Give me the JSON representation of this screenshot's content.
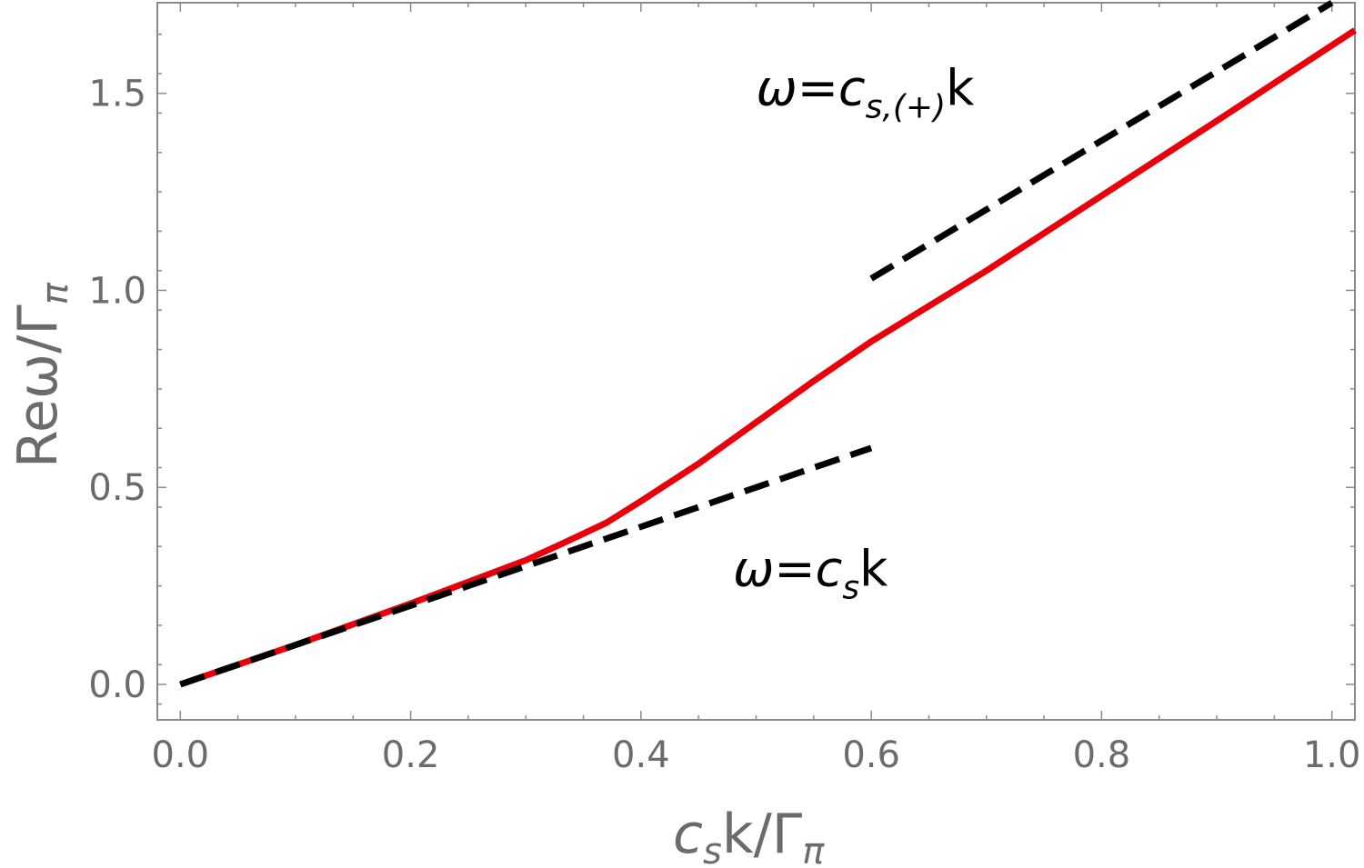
{
  "chart_data": {
    "type": "line",
    "xlim": [
      -0.02,
      1.02
    ],
    "ylim": [
      -0.09,
      1.73
    ],
    "x_ticks": [
      {
        "value": 0.0,
        "label": "0.0"
      },
      {
        "value": 0.2,
        "label": "0.2"
      },
      {
        "value": 0.4,
        "label": "0.4"
      },
      {
        "value": 0.6,
        "label": "0.6"
      },
      {
        "value": 0.8,
        "label": "0.8"
      },
      {
        "value": 1.0,
        "label": "1.0"
      }
    ],
    "y_ticks": [
      {
        "value": 0.0,
        "label": "0.0"
      },
      {
        "value": 0.5,
        "label": "0.5"
      },
      {
        "value": 1.0,
        "label": "1.0"
      },
      {
        "value": 1.5,
        "label": "1.5"
      }
    ],
    "xlabel": {
      "main": "c",
      "sub1": "s",
      "mid": "k/Γ",
      "sub2": "π"
    },
    "ylabel": {
      "main": "Reω/Γ",
      "sub": "π"
    },
    "grid": false,
    "series": [
      {
        "style": "solid",
        "color": "#e8000b",
        "x": [
          0.0,
          0.1,
          0.2,
          0.25,
          0.3,
          0.33,
          0.37,
          0.4,
          0.45,
          0.5,
          0.55,
          0.6,
          0.7,
          0.8,
          0.9,
          1.02
        ],
        "y": [
          0.0,
          0.1,
          0.205,
          0.26,
          0.315,
          0.355,
          0.41,
          0.465,
          0.56,
          0.665,
          0.77,
          0.87,
          1.05,
          1.24,
          1.43,
          1.66
        ]
      },
      {
        "style": "dashed",
        "color": "#000000",
        "x": [
          0.0,
          0.6
        ],
        "y": [
          0.0,
          0.6
        ]
      },
      {
        "style": "dashed",
        "color": "#000000",
        "x": [
          0.6,
          1.0
        ],
        "y": [
          1.03,
          1.73
        ]
      }
    ],
    "annotations": [
      {
        "main": "ω=c",
        "sub": "s,(+)",
        "tail": "k",
        "x": 0.5,
        "y": 1.47
      },
      {
        "main": "ω=c",
        "sub": "s",
        "tail": "k",
        "x": 0.48,
        "y": 0.25
      }
    ]
  }
}
